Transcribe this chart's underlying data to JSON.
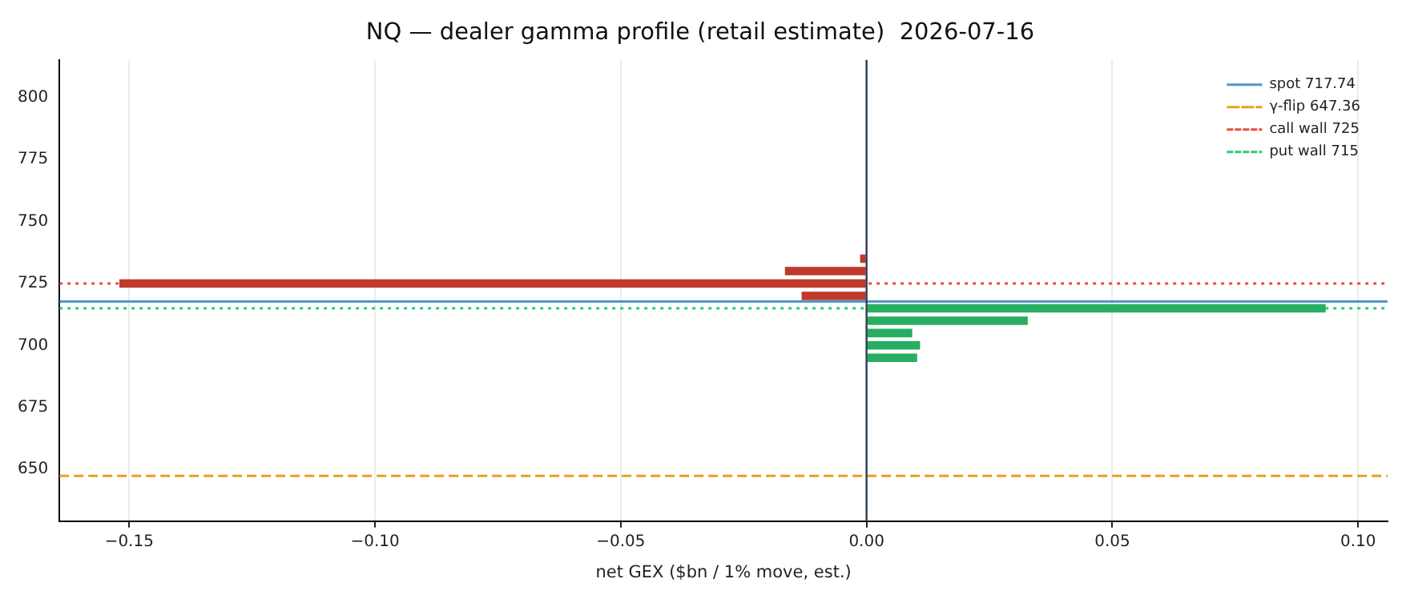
{
  "chart_data": {
    "type": "bar",
    "orientation": "horizontal",
    "title": "NQ — dealer gamma profile (retail estimate)  2026-07-16",
    "xlabel": "net GEX ($bn / 1% move, est.)",
    "x": [
      735,
      730,
      725,
      720,
      715,
      710,
      705,
      700,
      695
    ],
    "values": [
      -0.0013,
      -0.0166,
      -0.152,
      -0.0132,
      0.0934,
      0.0328,
      0.0093,
      0.0109,
      0.0103
    ],
    "colors": [
      "#c0392b",
      "#c0392b",
      "#c0392b",
      "#c0392b",
      "#27ae60",
      "#27ae60",
      "#27ae60",
      "#27ae60",
      "#27ae60"
    ],
    "xlim": [
      -0.1642,
      0.106
    ],
    "xticks": [
      {
        "value": -0.15,
        "label": "−0.15"
      },
      {
        "value": -0.1,
        "label": "−0.10"
      },
      {
        "value": -0.05,
        "label": "−0.05"
      },
      {
        "value": 0,
        "label": "0.00"
      },
      {
        "value": 0.05,
        "label": "0.05"
      },
      {
        "value": 0.1,
        "label": "0.10"
      }
    ],
    "ylim": [
      629.1,
      815.2
    ],
    "yticks": [
      650,
      675,
      700,
      725,
      750,
      775,
      800
    ],
    "ref_lines": [
      {
        "axis": "x",
        "value": 0,
        "label": null,
        "color": "#2c3e50",
        "line_style": "solid"
      },
      {
        "axis": "y",
        "value": 717.74,
        "label": "spot 717.74",
        "color": "#4f97c9",
        "line_style": "solid"
      },
      {
        "axis": "y",
        "value": 647.36,
        "label": "γ-flip 647.36",
        "color": "#e6a11c",
        "line_style": "dashed"
      },
      {
        "axis": "y",
        "value": 725,
        "label": "call wall 725",
        "color": "#e74c3c",
        "line_style": "dotted"
      },
      {
        "axis": "y",
        "value": 715,
        "label": "put wall 715",
        "color": "#2ecc71",
        "line_style": "dotted"
      }
    ],
    "grid": "x",
    "legend": "top right"
  }
}
